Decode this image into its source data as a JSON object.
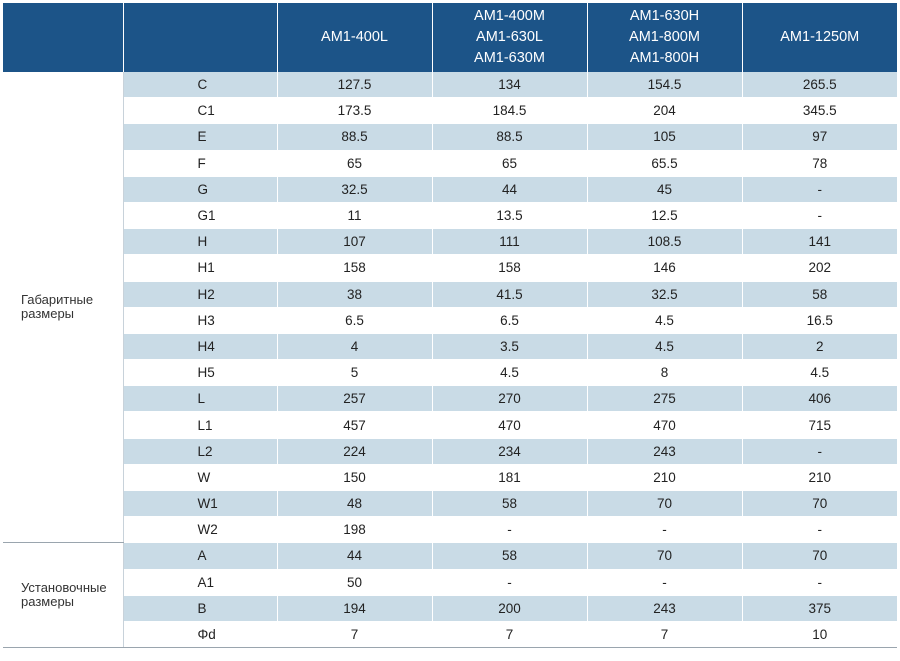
{
  "header": {
    "col0": "",
    "col1": "",
    "models": [
      [
        "AM1-400L"
      ],
      [
        "AM1-400M",
        "AM1-630L",
        "AM1-630M"
      ],
      [
        "AM1-630H",
        "AM1-800M",
        "AM1-800H"
      ],
      [
        "AM1-1250M"
      ]
    ]
  },
  "groups": [
    {
      "label": [
        "Габаритные",
        "размеры"
      ],
      "rows": [
        {
          "param": "C",
          "values": [
            "127.5",
            "134",
            "154.5",
            "265.5"
          ]
        },
        {
          "param": "C1",
          "values": [
            "173.5",
            "184.5",
            "204",
            "345.5"
          ]
        },
        {
          "param": "E",
          "values": [
            "88.5",
            "88.5",
            "105",
            "97"
          ]
        },
        {
          "param": "F",
          "values": [
            "65",
            "65",
            "65.5",
            "78"
          ]
        },
        {
          "param": "G",
          "values": [
            "32.5",
            "44",
            "45",
            "-"
          ]
        },
        {
          "param": "G1",
          "values": [
            "11",
            "13.5",
            "12.5",
            "-"
          ]
        },
        {
          "param": "H",
          "values": [
            "107",
            "111",
            "108.5",
            "141"
          ]
        },
        {
          "param": "H1",
          "values": [
            "158",
            "158",
            "146",
            "202"
          ]
        },
        {
          "param": "H2",
          "values": [
            "38",
            "41.5",
            "32.5",
            "58"
          ]
        },
        {
          "param": "H3",
          "values": [
            "6.5",
            "6.5",
            "4.5",
            "16.5"
          ]
        },
        {
          "param": "H4",
          "values": [
            "4",
            "3.5",
            "4.5",
            "2"
          ]
        },
        {
          "param": "H5",
          "values": [
            "5",
            "4.5",
            "8",
            "4.5"
          ]
        },
        {
          "param": "L",
          "values": [
            "257",
            "270",
            "275",
            "406"
          ]
        },
        {
          "param": "L1",
          "values": [
            "457",
            "470",
            "470",
            "715"
          ]
        },
        {
          "param": "L2",
          "values": [
            "224",
            "234",
            "243",
            "-"
          ]
        },
        {
          "param": "W",
          "values": [
            "150",
            "181",
            "210",
            "210"
          ]
        },
        {
          "param": "W1",
          "values": [
            "48",
            "58",
            "70",
            "70"
          ]
        },
        {
          "param": "W2",
          "values": [
            "198",
            "-",
            "-",
            "-"
          ]
        }
      ]
    },
    {
      "label": [
        "Установочные",
        "размеры"
      ],
      "rows": [
        {
          "param": "A",
          "values": [
            "44",
            "58",
            "70",
            "70"
          ]
        },
        {
          "param": "A1",
          "values": [
            "50",
            "-",
            "-",
            "-"
          ]
        },
        {
          "param": "B",
          "values": [
            "194",
            "200",
            "243",
            "375"
          ]
        },
        {
          "param": "Φd",
          "values": [
            "7",
            "7",
            "7",
            "10"
          ]
        }
      ]
    }
  ],
  "colors": {
    "header_bg": "#1c5488",
    "header_text": "#ffffff",
    "stripe": "#c9dbe6"
  }
}
